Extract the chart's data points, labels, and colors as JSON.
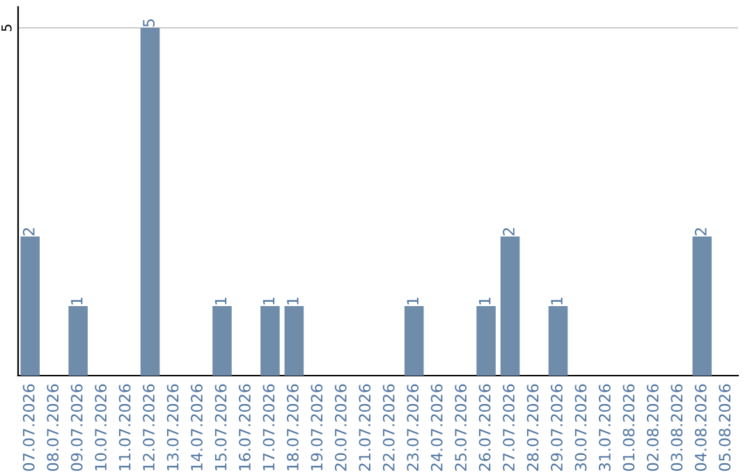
{
  "chart_data": {
    "type": "bar",
    "categories": [
      "07.07.2026",
      "08.07.2026",
      "09.07.2026",
      "10.07.2026",
      "11.07.2026",
      "12.07.2026",
      "13.07.2026",
      "14.07.2026",
      "15.07.2026",
      "16.07.2026",
      "17.07.2026",
      "18.07.2026",
      "19.07.2026",
      "20.07.2026",
      "21.07.2026",
      "22.07.2026",
      "23.07.2026",
      "24.07.2026",
      "25.07.2026",
      "26.07.2026",
      "27.07.2026",
      "28.07.2026",
      "29.07.2026",
      "30.07.2026",
      "31.07.2026",
      "01.08.2026",
      "02.08.2026",
      "03.08.2026",
      "04.08.2026",
      "05.08.2026"
    ],
    "values": [
      2,
      0,
      1,
      0,
      0,
      5,
      0,
      0,
      1,
      0,
      1,
      1,
      0,
      0,
      0,
      0,
      1,
      0,
      0,
      1,
      2,
      0,
      1,
      0,
      0,
      0,
      0,
      0,
      2,
      0
    ],
    "value_labels": [
      "2",
      null,
      "1",
      null,
      null,
      "5",
      null,
      null,
      "1",
      null,
      "1",
      "1",
      null,
      null,
      null,
      null,
      "1",
      null,
      null,
      "1",
      "2",
      null,
      "1",
      null,
      null,
      null,
      null,
      null,
      "2",
      null
    ],
    "color": "#6f8cab",
    "ylim": [
      0,
      5.3
    ],
    "yticks": [
      5
    ],
    "grid": "y",
    "legend": false
  }
}
